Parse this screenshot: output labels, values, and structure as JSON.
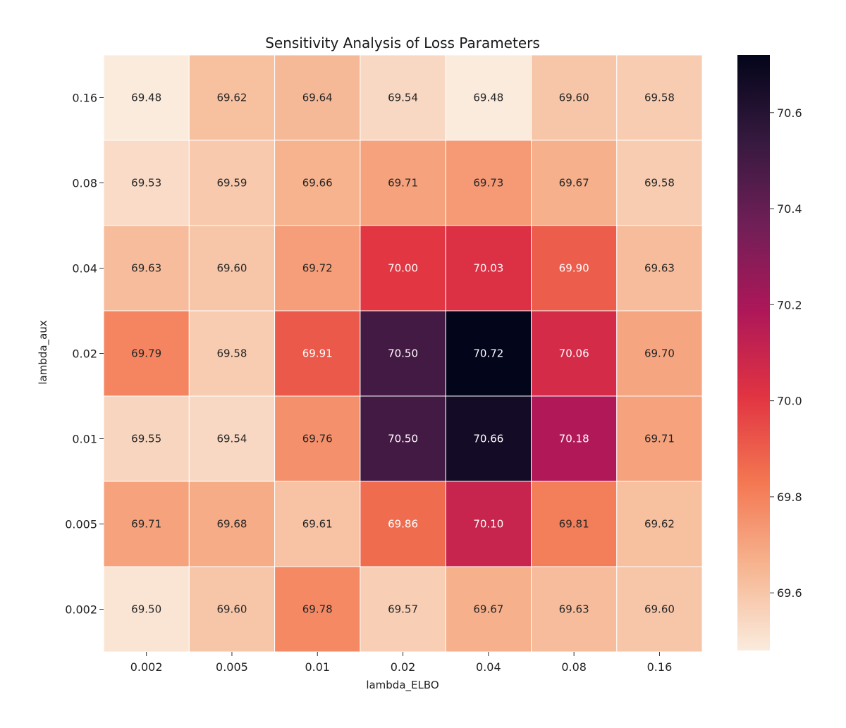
{
  "chart_data": {
    "type": "heatmap",
    "title": "Sensitivity Analysis of Loss Parameters",
    "xlabel": "lambda_ELBO",
    "ylabel": "lambda_aux",
    "x_categories": [
      "0.002",
      "0.005",
      "0.01",
      "0.02",
      "0.04",
      "0.08",
      "0.16"
    ],
    "y_categories": [
      "0.16",
      "0.08",
      "0.04",
      "0.02",
      "0.01",
      "0.005",
      "0.002"
    ],
    "values": [
      [
        69.48,
        69.62,
        69.64,
        69.54,
        69.48,
        69.6,
        69.58
      ],
      [
        69.53,
        69.59,
        69.66,
        69.71,
        69.73,
        69.67,
        69.58
      ],
      [
        69.63,
        69.6,
        69.72,
        70.0,
        70.03,
        69.9,
        69.63
      ],
      [
        69.79,
        69.58,
        69.91,
        70.5,
        70.72,
        70.06,
        69.7
      ],
      [
        69.55,
        69.54,
        69.76,
        70.5,
        70.66,
        70.18,
        69.71
      ],
      [
        69.71,
        69.68,
        69.61,
        69.86,
        70.1,
        69.81,
        69.62
      ],
      [
        69.5,
        69.6,
        69.78,
        69.57,
        69.67,
        69.63,
        69.6
      ]
    ],
    "labels": [
      [
        "69.48",
        "69.62",
        "69.64",
        "69.54",
        "69.48",
        "69.60",
        "69.58"
      ],
      [
        "69.53",
        "69.59",
        "69.66",
        "69.71",
        "69.73",
        "69.67",
        "69.58"
      ],
      [
        "69.63",
        "69.60",
        "69.72",
        "70.00",
        "70.03",
        "69.90",
        "69.63"
      ],
      [
        "69.79",
        "69.58",
        "69.91",
        "70.50",
        "70.72",
        "70.06",
        "69.70"
      ],
      [
        "69.55",
        "69.54",
        "69.76",
        "70.50",
        "70.66",
        "70.18",
        "69.71"
      ],
      [
        "69.71",
        "69.68",
        "69.61",
        "69.86",
        "70.10",
        "69.81",
        "69.62"
      ],
      [
        "69.50",
        "69.60",
        "69.78",
        "69.57",
        "69.67",
        "69.63",
        "69.60"
      ]
    ],
    "colorbar": {
      "vmin": 69.48,
      "vmax": 70.72,
      "ticks": [
        69.6,
        69.8,
        70.0,
        70.2,
        70.4,
        70.6
      ],
      "tick_labels": [
        "69.6",
        "69.8",
        "70.0",
        "70.2",
        "70.4",
        "70.6"
      ]
    },
    "colormap": "rocket_r",
    "colormap_stops": [
      "#faebdd",
      "#f6b48f",
      "#f37651",
      "#e13342",
      "#ad1759",
      "#701f57",
      "#35193e",
      "#03051a"
    ],
    "grid": false,
    "legend": "colorbar-right"
  }
}
